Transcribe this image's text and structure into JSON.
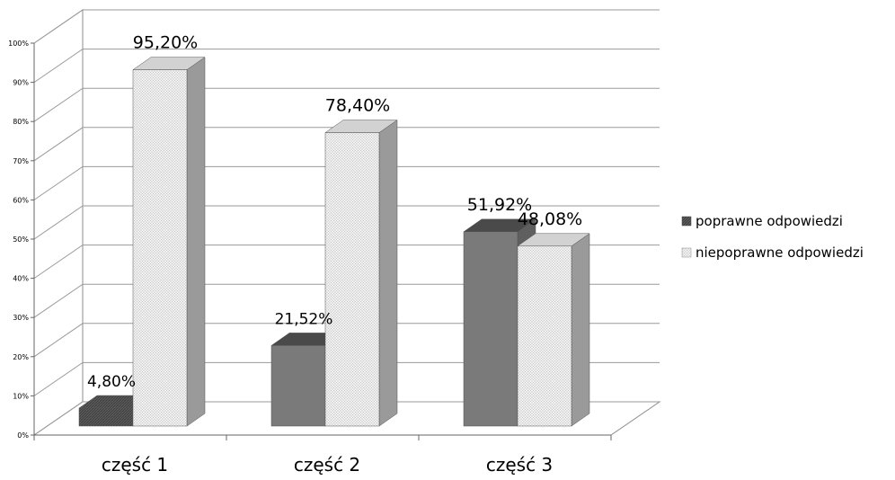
{
  "chart_data": {
    "type": "bar",
    "categories": [
      "część 1",
      "część 2",
      "część 3"
    ],
    "series": [
      {
        "name": "poprawne odpowiedzi",
        "values": [
          4.8,
          21.52,
          51.92
        ],
        "labels": [
          "4,80%",
          "21,52%",
          "51,92%"
        ],
        "color": "#7a7a7a"
      },
      {
        "name": "niepoprawne odpowiedzi",
        "values": [
          95.2,
          78.4,
          48.08
        ],
        "labels": [
          "95,20%",
          "78,40%",
          "48,08%"
        ],
        "color": "#eaeaea"
      }
    ],
    "y_ticks": [
      "0%",
      "10%",
      "20%",
      "30%",
      "40%",
      "50%",
      "60%",
      "70%",
      "80%",
      "90%",
      "100%"
    ],
    "ylim": [
      0,
      100
    ],
    "grid": true,
    "legend_position": "right",
    "style": "3d-column"
  }
}
